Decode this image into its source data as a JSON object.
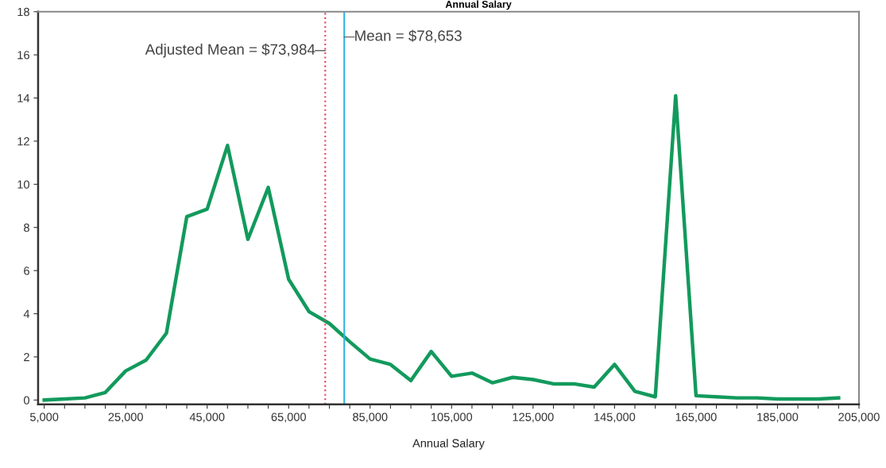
{
  "chart_data": {
    "type": "line",
    "title": "Annual Salary",
    "xlabel": "Annual Salary",
    "x": [
      5000,
      10000,
      15000,
      20000,
      25000,
      30000,
      35000,
      40000,
      45000,
      50000,
      55000,
      60000,
      65000,
      70000,
      75000,
      80000,
      85000,
      90000,
      95000,
      100000,
      105000,
      110000,
      115000,
      120000,
      125000,
      130000,
      135000,
      140000,
      145000,
      150000,
      155000,
      160000,
      165000,
      170000,
      175000,
      180000,
      185000,
      190000,
      195000,
      200000
    ],
    "series": [
      {
        "color": "#129a5c",
        "values": [
          0,
          0.05,
          0.1,
          0.35,
          1.35,
          1.85,
          3.1,
          8.5,
          8.85,
          11.8,
          7.45,
          9.85,
          5.6,
          4.1,
          3.55,
          2.7,
          1.9,
          1.65,
          0.9,
          2.25,
          1.1,
          1.25,
          0.8,
          1.05,
          0.95,
          0.75,
          0.75,
          0.6,
          1.65,
          0.4,
          0.15,
          14.1,
          0.2,
          0.15,
          0.1,
          0.1,
          0.05,
          0.05,
          0.05,
          0.1
        ]
      }
    ],
    "xlim": [
      3500,
      205000
    ],
    "xticks": [
      {
        "value": 5000,
        "label": "5,000"
      },
      {
        "value": 10000,
        "label": null
      },
      {
        "value": 15000,
        "label": null
      },
      {
        "value": 20000,
        "label": null
      },
      {
        "value": 25000,
        "label": "25,000"
      },
      {
        "value": 30000,
        "label": null
      },
      {
        "value": 35000,
        "label": null
      },
      {
        "value": 40000,
        "label": null
      },
      {
        "value": 45000,
        "label": "45,000"
      },
      {
        "value": 50000,
        "label": null
      },
      {
        "value": 55000,
        "label": null
      },
      {
        "value": 60000,
        "label": null
      },
      {
        "value": 65000,
        "label": "65,000"
      },
      {
        "value": 70000,
        "label": null
      },
      {
        "value": 75000,
        "label": null
      },
      {
        "value": 80000,
        "label": null
      },
      {
        "value": 85000,
        "label": "85,000"
      },
      {
        "value": 90000,
        "label": null
      },
      {
        "value": 95000,
        "label": null
      },
      {
        "value": 100000,
        "label": null
      },
      {
        "value": 105000,
        "label": "105,000"
      },
      {
        "value": 110000,
        "label": null
      },
      {
        "value": 115000,
        "label": null
      },
      {
        "value": 120000,
        "label": null
      },
      {
        "value": 125000,
        "label": "125,000"
      },
      {
        "value": 130000,
        "label": null
      },
      {
        "value": 135000,
        "label": null
      },
      {
        "value": 140000,
        "label": null
      },
      {
        "value": 145000,
        "label": "145,000"
      },
      {
        "value": 150000,
        "label": null
      },
      {
        "value": 155000,
        "label": null
      },
      {
        "value": 160000,
        "label": null
      },
      {
        "value": 165000,
        "label": "165,000"
      },
      {
        "value": 170000,
        "label": null
      },
      {
        "value": 175000,
        "label": null
      },
      {
        "value": 180000,
        "label": null
      },
      {
        "value": 185000,
        "label": "185,000"
      },
      {
        "value": 190000,
        "label": null
      },
      {
        "value": 195000,
        "label": null
      },
      {
        "value": 200000,
        "label": null
      },
      {
        "value": 205000,
        "label": "205,000"
      }
    ],
    "ylim": [
      -0.2,
      18
    ],
    "yticks": [
      0,
      2,
      4,
      6,
      8,
      10,
      12,
      14,
      16,
      18
    ],
    "ref_lines": [
      {
        "axis": "x",
        "value": 73984,
        "label": "Adjusted Mean = $73,984",
        "color": "#e8405a",
        "line_style": "dotted"
      },
      {
        "axis": "x",
        "value": 78653,
        "label": "Mean = $78,653",
        "color": "#2fb3e0",
        "line_style": "solid"
      }
    ],
    "marker": "none",
    "line_style": "solid",
    "grid": false,
    "legend": false
  }
}
